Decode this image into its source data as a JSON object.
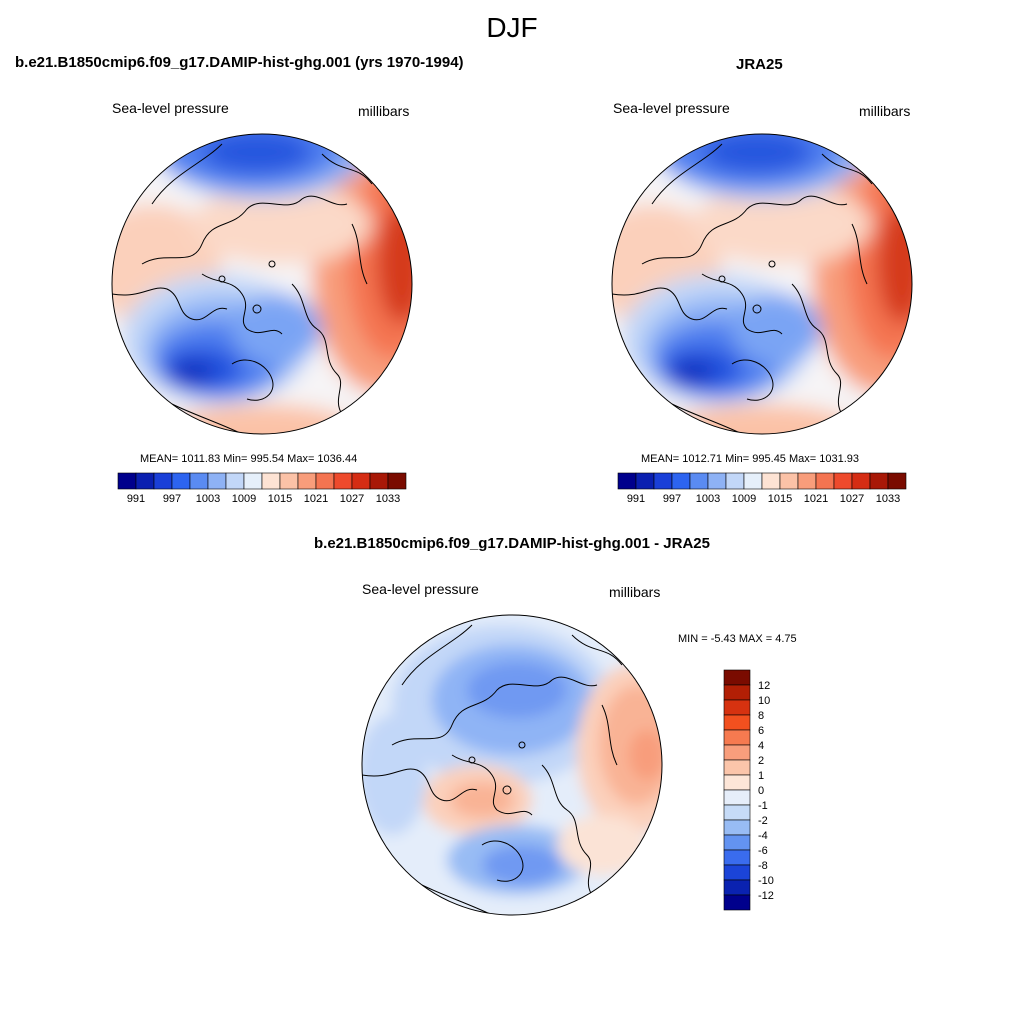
{
  "title": "DJF",
  "panels": [
    {
      "title": "b.e21.B1850cmip6.f09_g17.DAMIP-hist-ghg.001 (yrs 1970-1994)",
      "left_label": "Sea-level pressure",
      "right_label": "millibars",
      "stats": "MEAN= 1011.83  Min= 995.54  Max= 1036.44"
    },
    {
      "title": "JRA25",
      "left_label": "Sea-level pressure",
      "right_label": "millibars",
      "stats": "MEAN= 1012.71  Min= 995.45  Max= 1031.93"
    },
    {
      "title": "b.e21.B1850cmip6.f09_g17.DAMIP-hist-ghg.001 - JRA25",
      "left_label": "Sea-level pressure",
      "right_label": "millibars",
      "stats": "MIN =  -5.43 MAX =   4.75"
    }
  ],
  "chart_data": [
    {
      "type": "heatmap",
      "name": "model",
      "projection": "north-polar-stereographic",
      "variable": "Sea-level pressure",
      "units": "millibars",
      "mean": 1011.83,
      "min": 995.54,
      "max": 1036.44,
      "colorbar_ticks": [
        "991",
        "997",
        "1003",
        "1009",
        "1015",
        "1021",
        "1027",
        "1033"
      ],
      "colorbar_colors": [
        "#00008c",
        "#0a1fb0",
        "#1a3fd8",
        "#2d64f0",
        "#5a8bf2",
        "#8eb2f5",
        "#c2d7f8",
        "#e6f0fb",
        "#fde3d4",
        "#fbc2a7",
        "#f89d7b",
        "#f47451",
        "#ee4a2c",
        "#d52d14",
        "#a81807",
        "#7a0b00"
      ]
    },
    {
      "type": "heatmap",
      "name": "observation",
      "projection": "north-polar-stereographic",
      "variable": "Sea-level pressure",
      "units": "millibars",
      "mean": 1012.71,
      "min": 995.45,
      "max": 1031.93,
      "colorbar_ticks": [
        "991",
        "997",
        "1003",
        "1009",
        "1015",
        "1021",
        "1027",
        "1033"
      ],
      "colorbar_colors": [
        "#00008c",
        "#0a1fb0",
        "#1a3fd8",
        "#2d64f0",
        "#5a8bf2",
        "#8eb2f5",
        "#c2d7f8",
        "#e6f0fb",
        "#fde3d4",
        "#fbc2a7",
        "#f89d7b",
        "#f47451",
        "#ee4a2c",
        "#d52d14",
        "#a81807",
        "#7a0b00"
      ]
    },
    {
      "type": "heatmap",
      "name": "difference",
      "projection": "north-polar-stereographic",
      "variable": "Sea-level pressure",
      "units": "millibars",
      "min": -5.43,
      "max": 4.75,
      "colorbar_ticks": [
        "12",
        "10",
        "8",
        "6",
        "4",
        "2",
        "1",
        "0",
        "-1",
        "-2",
        "-4",
        "-6",
        "-8",
        "-10",
        "-12"
      ],
      "colorbar_colors": [
        "#7a0b00",
        "#b21f05",
        "#d63210",
        "#f2501f",
        "#f67a50",
        "#f89e7c",
        "#fbc5aa",
        "#fde6d8",
        "#e6eefa",
        "#c6dbf7",
        "#98bcf4",
        "#6393f1",
        "#3a6cee",
        "#1b44d8",
        "#0a22b0",
        "#00008c"
      ]
    }
  ],
  "colors": {
    "deep_blue": "#1f4fd8",
    "mid_blue": "#5a8bf2",
    "light_blue": "#c2d7f8",
    "pale": "#f1f4fb",
    "light_red": "#fbc2a7",
    "mid_red": "#f47451",
    "deep_red": "#c02a0c",
    "coast": "#000000"
  }
}
